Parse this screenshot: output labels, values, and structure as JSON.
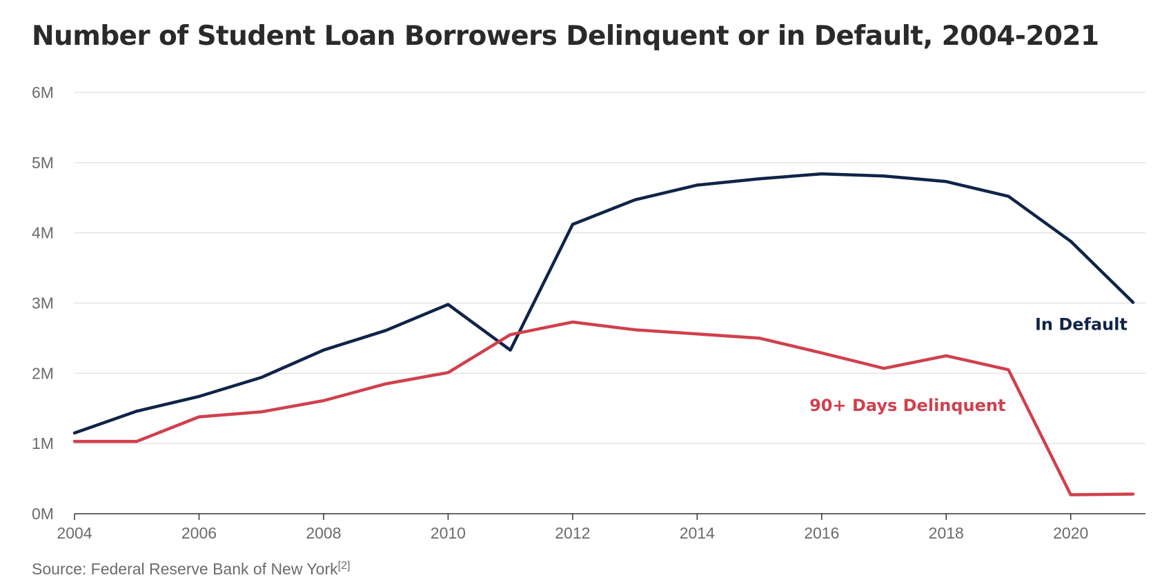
{
  "chart_data": {
    "type": "line",
    "title": "Number of Student Loan Borrowers Delinquent or in Default, 2004-2021",
    "x": [
      2004,
      2005,
      2006,
      2007,
      2008,
      2009,
      2010,
      2011,
      2012,
      2013,
      2014,
      2015,
      2016,
      2017,
      2018,
      2019,
      2020,
      2021
    ],
    "x_ticks": [
      2004,
      2006,
      2008,
      2010,
      2012,
      2014,
      2016,
      2018,
      2020
    ],
    "x_tick_labels": [
      "2004",
      "2006",
      "2008",
      "2010",
      "2012",
      "2014",
      "2016",
      "2018",
      "2020"
    ],
    "xlim": [
      2004,
      2021.2
    ],
    "y_ticks": [
      0,
      1,
      2,
      3,
      4,
      5,
      6
    ],
    "y_tick_labels": [
      "0M",
      "1M",
      "2M",
      "3M",
      "4M",
      "5M",
      "6M"
    ],
    "ylim": [
      0,
      6
    ],
    "grid": true,
    "series": [
      {
        "name": "In Default",
        "color": "#0f2447",
        "values": [
          1.15,
          1.46,
          1.67,
          1.94,
          2.33,
          2.61,
          2.98,
          2.33,
          4.12,
          4.47,
          4.68,
          4.77,
          4.84,
          4.81,
          4.73,
          4.52,
          3.88,
          3.01
        ]
      },
      {
        "name": "90+ Days Delinquent",
        "color": "#d0404c",
        "values": [
          1.03,
          1.03,
          1.38,
          1.45,
          1.61,
          1.85,
          2.01,
          2.55,
          2.73,
          2.62,
          2.56,
          2.5,
          2.29,
          2.07,
          2.25,
          2.05,
          0.27,
          0.28
        ]
      }
    ]
  },
  "source": {
    "text": "Source: Federal Reserve Bank of New York",
    "ref": "[2]"
  }
}
